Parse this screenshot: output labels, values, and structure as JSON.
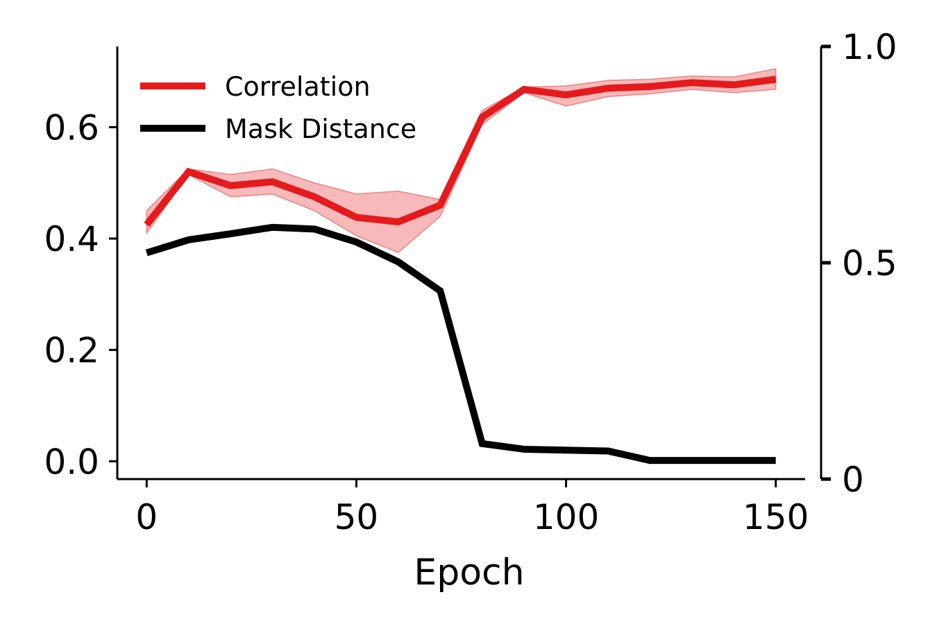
{
  "chart_data": {
    "type": "line",
    "xlabel": "Epoch",
    "xlim": [
      -7,
      157
    ],
    "x_ticks": [
      0,
      50,
      100,
      150
    ],
    "x_tick_labels": [
      "0",
      "50",
      "100",
      "150"
    ],
    "y_left": {
      "range": [
        -0.032,
        0.745
      ],
      "ticks": [
        0.0,
        0.2,
        0.4,
        0.6
      ],
      "tick_labels": [
        "0.0",
        "0.2",
        "0.4",
        "0.6"
      ]
    },
    "y_right": {
      "range": [
        0,
        1.0
      ],
      "ticks": [
        0,
        0.5,
        1.0
      ],
      "tick_labels": [
        "0",
        "0.5",
        "1.0"
      ]
    },
    "legend_position": "top-left",
    "grid": false,
    "x": [
      0,
      10,
      20,
      30,
      40,
      50,
      60,
      70,
      80,
      90,
      100,
      110,
      120,
      130,
      140,
      150
    ],
    "series": [
      {
        "name": "Correlation",
        "axis": "left",
        "color": "#e41a1c",
        "band_color": "#f08080",
        "values": [
          0.425,
          0.52,
          0.495,
          0.502,
          0.475,
          0.438,
          0.43,
          0.46,
          0.618,
          0.668,
          0.658,
          0.67,
          0.673,
          0.68,
          0.676,
          0.686
        ],
        "lower": [
          0.41,
          0.515,
          0.475,
          0.48,
          0.45,
          0.405,
          0.375,
          0.44,
          0.605,
          0.662,
          0.638,
          0.655,
          0.66,
          0.668,
          0.662,
          0.668
        ],
        "upper": [
          0.45,
          0.525,
          0.515,
          0.525,
          0.5,
          0.48,
          0.485,
          0.47,
          0.63,
          0.672,
          0.674,
          0.684,
          0.686,
          0.692,
          0.69,
          0.705
        ]
      },
      {
        "name": "Mask Distance",
        "axis": "right",
        "color": "#000000",
        "values": [
          0.523,
          0.553,
          0.567,
          0.582,
          0.578,
          0.548,
          0.502,
          0.435,
          0.082,
          0.069,
          0.067,
          0.065,
          0.043,
          0.043,
          0.043,
          0.043
        ]
      }
    ]
  }
}
